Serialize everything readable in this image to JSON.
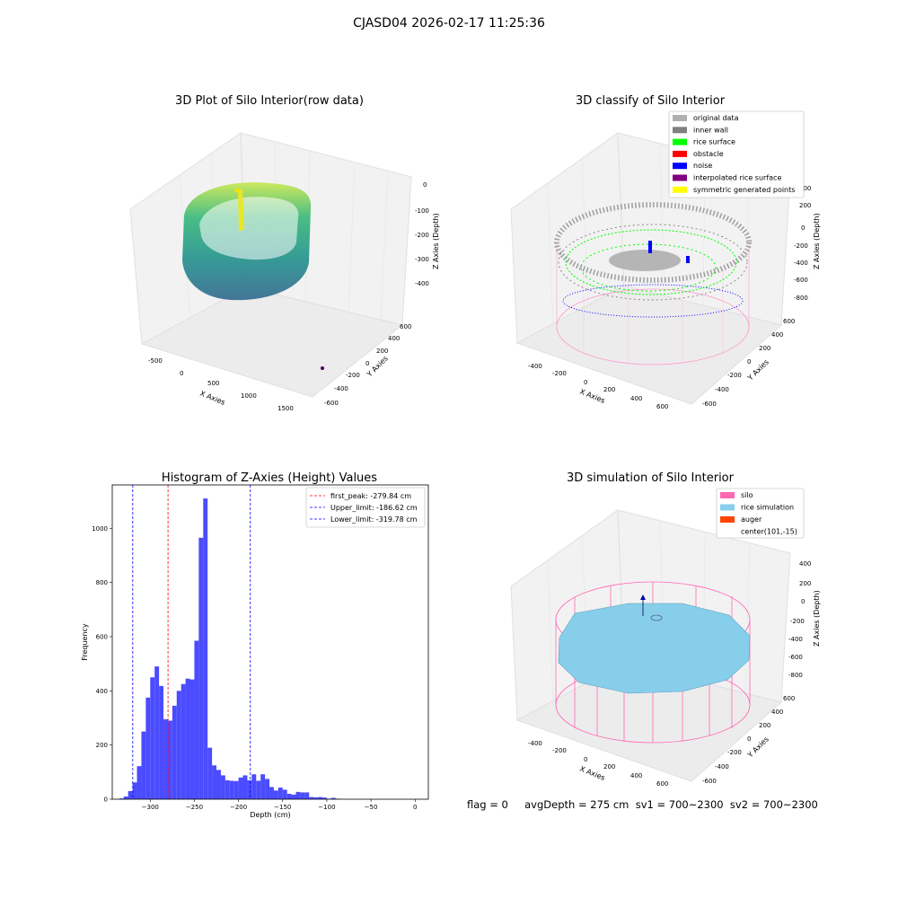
{
  "figure": {
    "suptitle": "CJASD04 2026-02-17 11:25:36"
  },
  "panels": {
    "p1": {
      "title": "3D Plot of Silo Interior(row data)",
      "xlabel": "X Axies",
      "ylabel": "Y Axies",
      "zlabel": "Z Axies (Depth)",
      "xticks": [
        "-500",
        "0",
        "500",
        "1000",
        "1500"
      ],
      "yticks": [
        "600",
        "400",
        "200",
        "0",
        "-200",
        "-400",
        "-600"
      ],
      "zticks": [
        "0",
        "-100",
        "-200",
        "-300",
        "-400"
      ]
    },
    "p2": {
      "title": "3D classify of Silo Interior",
      "xlabel": "X Axies",
      "ylabel": "Y Axies",
      "zlabel": "Z Axies (Depth)",
      "xticks": [
        "-400",
        "-200",
        "0",
        "200",
        "400",
        "600"
      ],
      "yticks": [
        "600",
        "400",
        "200",
        "0",
        "-200",
        "-400",
        "-600"
      ],
      "zticks": [
        "200",
        "0",
        "-200",
        "-400",
        "-600",
        "-800"
      ],
      "legend": [
        {
          "label": "original data",
          "color": "#b0b0b0"
        },
        {
          "label": "inner wall",
          "color": "#808080"
        },
        {
          "label": "rice surface",
          "color": "#00ff00"
        },
        {
          "label": "obstacle",
          "color": "#ff0000"
        },
        {
          "label": "noise",
          "color": "#0000ff"
        },
        {
          "label": "interpolated rice surface",
          "color": "#800080"
        },
        {
          "label": "symmetric generated points",
          "color": "#ffff00"
        }
      ]
    },
    "p4": {
      "title": "3D simulation of Silo Interior",
      "xlabel": "X Axies",
      "ylabel": "Y Axies",
      "zlabel": "Z Axies (Depth)",
      "xticks": [
        "-400",
        "-200",
        "0",
        "200",
        "400",
        "600"
      ],
      "yticks": [
        "600",
        "400",
        "200",
        "0",
        "-200",
        "-400",
        "-600"
      ],
      "zticks": [
        "400",
        "200",
        "0",
        "-200",
        "-400",
        "-600",
        "-800"
      ],
      "legend": [
        {
          "label": "silo",
          "color": "#ff69b4"
        },
        {
          "label": "rice simulation",
          "color": "#87ceeb"
        },
        {
          "label": "auger",
          "color": "#ff4500"
        },
        {
          "label": "center(101,-15)",
          "color": ""
        }
      ]
    }
  },
  "status": {
    "text": "flag = 0     avgDepth = 275 cm  sv1 = 700~2300  sv2 = 700~2300"
  },
  "chart_data": [
    {
      "type": "bar",
      "title": "Histogram of Z-Axies (Height) Values",
      "xlabel": "Depth (cm)",
      "ylabel": "Frequency",
      "xlim": [
        -343,
        15
      ],
      "ylim": [
        0,
        1160
      ],
      "bin_width": 5,
      "bin_start": -335,
      "values": [
        3,
        10,
        30,
        62,
        122,
        250,
        375,
        450,
        490,
        418,
        295,
        290,
        345,
        400,
        425,
        445,
        442,
        585,
        965,
        1110,
        190,
        125,
        108,
        88,
        70,
        68,
        67,
        80,
        88,
        70,
        92,
        68,
        92,
        75,
        45,
        32,
        43,
        35,
        20,
        17,
        27,
        25,
        25,
        8,
        7,
        8,
        6,
        2,
        5,
        2
      ],
      "xticks": [
        -300,
        -250,
        -200,
        -150,
        -100,
        -50,
        0
      ],
      "yticks": [
        0,
        200,
        400,
        600,
        800,
        1000
      ],
      "vlines": [
        {
          "x": -279.84,
          "color": "#ff0000",
          "label": "first_peak: -279.84 cm"
        },
        {
          "x": -186.62,
          "color": "#0000ff",
          "label": "Upper_limit: -186.62 cm"
        },
        {
          "x": -319.78,
          "color": "#0000ff",
          "label": "Lower_limit: -319.78 cm"
        }
      ],
      "bar_color": "#4b4bff"
    }
  ]
}
